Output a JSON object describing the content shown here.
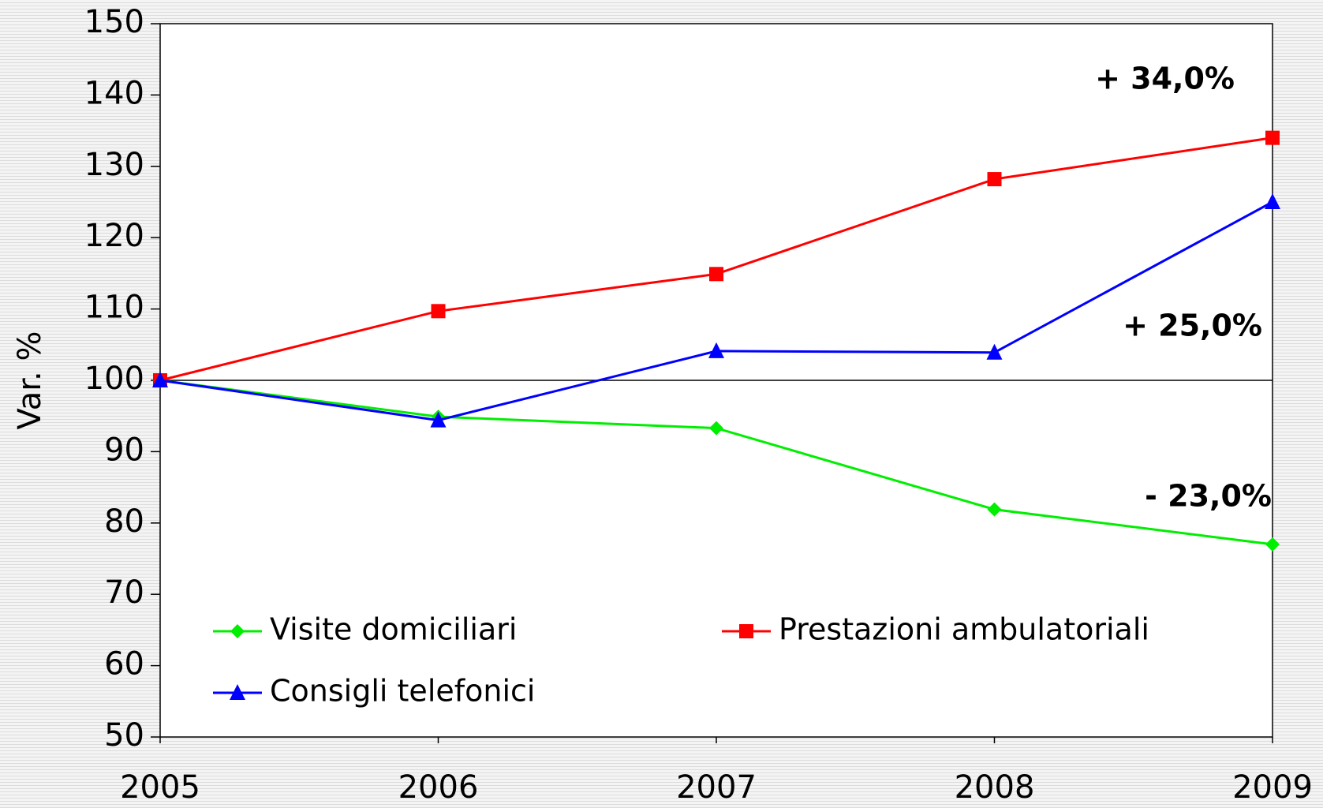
{
  "chart_data": {
    "type": "line",
    "y_label": "Var. %",
    "x": [
      2005,
      2006,
      2007,
      2008,
      2009
    ],
    "xlim": [
      2005,
      2009
    ],
    "xticks": [
      2005,
      2006,
      2007,
      2008,
      2009
    ],
    "ylim": [
      50,
      150
    ],
    "yticks": [
      50,
      60,
      70,
      80,
      90,
      100,
      110,
      120,
      130,
      140,
      150
    ],
    "reference_line": 100,
    "legend": "lower left",
    "series": [
      {
        "name": "Visite domiciliari",
        "color": "#00ee00",
        "marker": "diamond",
        "values": [
          100,
          94.9,
          93.3,
          81.9,
          77.0
        ]
      },
      {
        "name": "Prestazioni ambulatoriali",
        "color": "#ff0000",
        "marker": "square",
        "values": [
          100,
          109.7,
          114.9,
          128.2,
          134.0
        ]
      },
      {
        "name": "Consigli telefonici",
        "color": "#0000ff",
        "marker": "triangle",
        "values": [
          100,
          94.4,
          104.1,
          103.9,
          125.0
        ]
      }
    ],
    "annotations": [
      "+ 34,0%",
      "+ 25,0%",
      "- 23,0%"
    ]
  }
}
